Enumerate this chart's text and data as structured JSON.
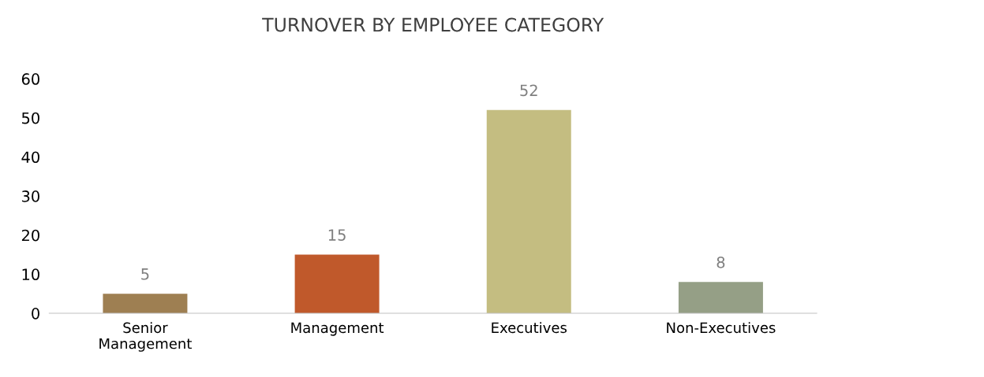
{
  "chart_data": {
    "type": "bar",
    "title": "TURNOVER BY EMPLOYEE CATEGORY",
    "categories": [
      "Senior\nManagement",
      "Management",
      "Executives",
      "Non-Executives"
    ],
    "values": [
      5,
      15,
      52,
      8
    ],
    "colors": [
      "#9e7f52",
      "#c0592b",
      "#c4bd81",
      "#959f86"
    ],
    "ylim": [
      0,
      60
    ],
    "yticks": [
      0,
      10,
      20,
      30,
      40,
      50,
      60
    ],
    "data_labels": true,
    "grid": false,
    "legend": false
  }
}
